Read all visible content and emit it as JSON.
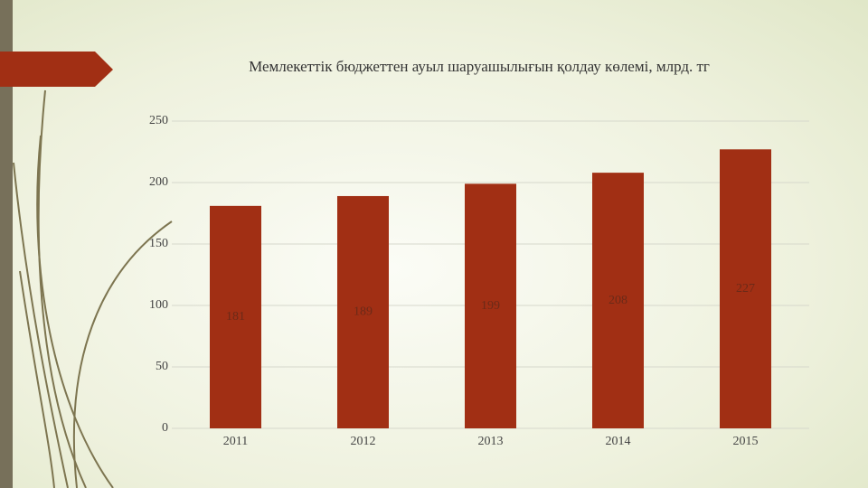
{
  "chart_data": {
    "type": "bar",
    "title": "Мемлекеттік бюджеттен ауыл шаруашылығын қолдау көлемі, млрд. тг",
    "categories": [
      "2011",
      "2012",
      "2013",
      "2014",
      "2015"
    ],
    "values": [
      181,
      189,
      199,
      208,
      227
    ],
    "color": "#a12f14",
    "ylim": [
      0,
      250
    ],
    "yticks": [
      0,
      50,
      100,
      150,
      200,
      250
    ],
    "grid": true
  }
}
